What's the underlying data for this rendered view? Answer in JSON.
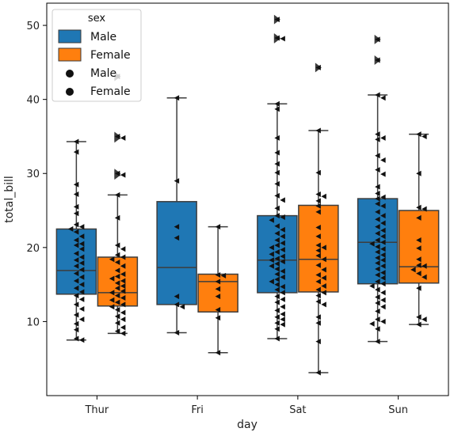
{
  "chart_data": {
    "type": "box",
    "xlabel": "day",
    "ylabel": "total_bill",
    "categories": [
      "Thur",
      "Fri",
      "Sat",
      "Sun"
    ],
    "ylim": [
      0,
      53
    ],
    "yticks": [
      10,
      20,
      30,
      40,
      50
    ],
    "legend": {
      "title": "sex",
      "placement": "top-left",
      "box_entries": [
        "Male",
        "Female"
      ],
      "swarm_entries": [
        "Male",
        "Female"
      ]
    },
    "colors": {
      "Male": "#1f77b4",
      "Female": "#ff7f0e"
    },
    "series": [
      {
        "name": "Male",
        "boxes": [
          {
            "category": "Thur",
            "whisker_low": 7.5,
            "q1": 13.7,
            "median": 16.9,
            "q3": 22.5,
            "whisker_high": 34.3,
            "outliers": []
          },
          {
            "category": "Fri",
            "whisker_low": 8.5,
            "q1": 12.3,
            "median": 17.3,
            "q3": 26.2,
            "whisker_high": 40.2,
            "outliers": []
          },
          {
            "category": "Sat",
            "whisker_low": 7.7,
            "q1": 13.9,
            "median": 18.3,
            "q3": 24.3,
            "whisker_high": 39.4,
            "outliers": [
              48.2,
              48.3,
              50.8
            ]
          },
          {
            "category": "Sun",
            "whisker_low": 7.3,
            "q1": 15.1,
            "median": 20.7,
            "q3": 26.6,
            "whisker_high": 40.6,
            "outliers": [
              45.3,
              48.1
            ]
          }
        ],
        "points": [
          [
            34.3,
            32.9,
            28.5,
            27.2,
            25.5,
            24.6,
            23.1,
            22.8,
            22.5,
            22.1,
            21.5,
            21.0,
            20.5,
            20.3,
            19.8,
            19.2,
            18.7,
            18.3,
            17.9,
            17.5,
            17.0,
            16.5,
            16.0,
            15.5,
            15.0,
            14.5,
            14.0,
            13.5,
            13.0,
            12.3,
            11.7,
            10.9,
            10.3,
            9.7,
            8.9,
            7.7,
            7.5
          ],
          [
            40.2,
            29.0,
            22.8,
            21.3,
            13.4,
            12.3,
            12.0,
            8.5
          ],
          [
            50.8,
            48.3,
            48.2,
            39.4,
            38.7,
            34.8,
            32.8,
            31.3,
            30.1,
            28.6,
            27.0,
            26.4,
            25.3,
            24.3,
            24.1,
            23.7,
            22.9,
            22.4,
            21.9,
            21.5,
            21.0,
            20.6,
            20.3,
            20.0,
            19.7,
            19.4,
            19.1,
            18.8,
            18.5,
            18.3,
            18.1,
            17.8,
            17.5,
            17.1,
            16.8,
            16.4,
            16.0,
            15.7,
            15.4,
            15.0,
            14.7,
            14.3,
            13.9,
            13.4,
            13.0,
            12.6,
            12.0,
            11.5,
            11.0,
            10.6,
            10.3,
            9.8,
            9.6,
            9.0,
            7.7
          ],
          [
            48.1,
            45.3,
            40.6,
            40.2,
            35.3,
            34.8,
            34.6,
            32.4,
            31.8,
            30.5,
            29.9,
            28.2,
            27.3,
            26.8,
            26.6,
            25.9,
            25.6,
            24.8,
            24.3,
            23.8,
            23.3,
            22.8,
            22.3,
            21.9,
            21.5,
            21.0,
            20.7,
            20.5,
            20.1,
            19.8,
            19.4,
            19.0,
            18.6,
            18.3,
            17.9,
            17.5,
            17.1,
            16.6,
            16.3,
            15.9,
            15.4,
            15.1,
            14.8,
            14.3,
            13.9,
            13.3,
            12.9,
            12.5,
            12.0,
            11.4,
            10.3,
            10.0,
            9.7,
            9.0,
            7.3
          ]
        ]
      },
      {
        "name": "Female",
        "boxes": [
          {
            "category": "Thur",
            "whisker_low": 8.4,
            "q1": 12.1,
            "median": 13.9,
            "q3": 18.7,
            "whisker_high": 27.1,
            "outliers": [
              29.8,
              30.0,
              34.8,
              35.0,
              43.1
            ]
          },
          {
            "category": "Fri",
            "whisker_low": 5.8,
            "q1": 11.3,
            "median": 15.4,
            "q3": 16.4,
            "whisker_high": 22.8,
            "outliers": []
          },
          {
            "category": "Sat",
            "whisker_low": 3.1,
            "q1": 14.0,
            "median": 18.4,
            "q3": 25.7,
            "whisker_high": 35.8,
            "outliers": [
              44.3
            ]
          },
          {
            "category": "Sun",
            "whisker_low": 9.6,
            "q1": 15.2,
            "median": 17.4,
            "q3": 25.0,
            "whisker_high": 35.3,
            "outliers": []
          }
        ],
        "points": [
          [
            43.1,
            35.0,
            34.8,
            30.0,
            29.8,
            27.1,
            24.0,
            20.3,
            19.8,
            19.0,
            18.7,
            18.4,
            18.0,
            17.5,
            16.9,
            16.4,
            16.1,
            15.8,
            15.5,
            15.2,
            14.8,
            14.5,
            14.1,
            13.9,
            13.5,
            13.2,
            12.9,
            12.6,
            12.3,
            12.0,
            11.6,
            11.2,
            10.7,
            10.3,
            9.8,
            9.2,
            8.7,
            8.4
          ],
          [
            22.8,
            16.3,
            16.2,
            15.4,
            14.4,
            13.4,
            11.6,
            10.5,
            5.8
          ],
          [
            44.3,
            35.8,
            30.1,
            27.2,
            26.9,
            26.3,
            25.6,
            24.8,
            22.7,
            21.5,
            20.3,
            20.0,
            19.6,
            18.9,
            18.4,
            17.6,
            17.0,
            16.3,
            15.9,
            15.4,
            14.8,
            14.3,
            13.9,
            13.5,
            12.7,
            12.3,
            10.6,
            9.8,
            7.3,
            3.1
          ],
          [
            35.3,
            35.0,
            30.0,
            25.4,
            25.2,
            24.0,
            21.0,
            19.9,
            18.4,
            17.6,
            17.5,
            17.0,
            16.5,
            16.0,
            14.5,
            10.6,
            10.3,
            9.6
          ]
        ]
      }
    ]
  }
}
